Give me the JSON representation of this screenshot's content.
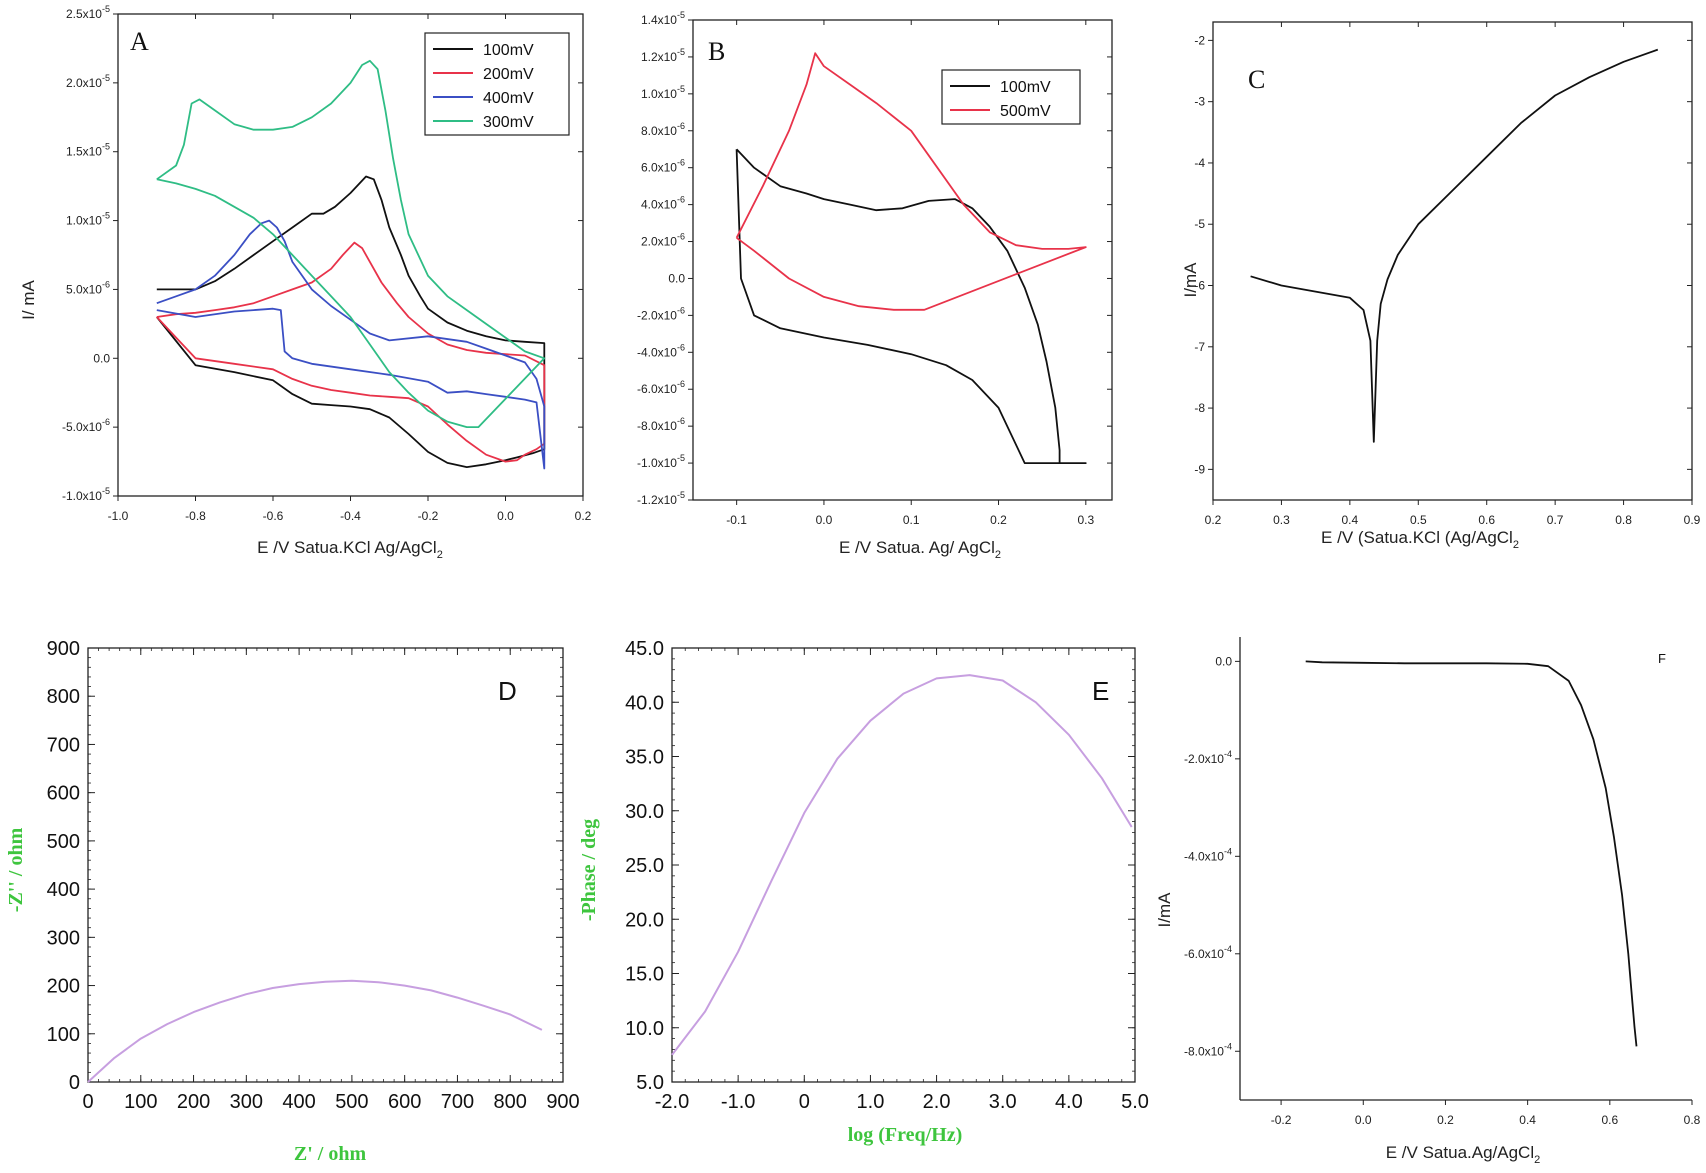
{
  "chart_data": [
    {
      "id": "A",
      "type": "line",
      "panel_label": "A",
      "xlabel": "E /V Satua.KCl Ag/AgCl",
      "xlabel_sub": "2",
      "ylabel": "I/ mA",
      "xlim": [
        -1.0,
        0.2
      ],
      "ylim": [
        -1e-05,
        2.5e-05
      ],
      "xticks": [
        "-1.0",
        "-0.8",
        "-0.6",
        "-0.4",
        "-0.2",
        "0.0",
        "0.2"
      ],
      "yticks": [
        "-1.0x10",
        "-5.0x10",
        "0.0",
        "5.0x10",
        "1.0x10",
        "1.5x10",
        "2.0x10",
        "2.5x10"
      ],
      "ytick_exps": [
        "-5",
        "-6",
        "",
        "-6",
        "-5",
        "-5",
        "-5",
        "-5"
      ],
      "legend_position": "top-right",
      "series": [
        {
          "name": "100mV",
          "color": "#111111",
          "x": [
            -0.9,
            -0.9,
            -0.85,
            -0.8,
            -0.75,
            -0.7,
            -0.65,
            -0.6,
            -0.55,
            -0.5,
            -0.47,
            -0.44,
            -0.4,
            -0.36,
            -0.34,
            -0.32,
            -0.3,
            -0.27,
            -0.25,
            -0.22,
            -0.2,
            -0.15,
            -0.1,
            -0.05,
            0.0,
            0.05,
            0.1,
            0.1,
            0.07,
            0.03,
            0.0,
            -0.05,
            -0.1,
            -0.15,
            -0.2,
            -0.25,
            -0.3,
            -0.35,
            -0.4,
            -0.45,
            -0.5,
            -0.55,
            -0.6,
            -0.7,
            -0.8,
            -0.9
          ],
          "y": [
            5e-06,
            5e-06,
            5e-06,
            5e-06,
            5.6e-06,
            6.5e-06,
            7.5e-06,
            8.5e-06,
            9.5e-06,
            1.05e-05,
            1.05e-05,
            1.1e-05,
            1.2e-05,
            1.32e-05,
            1.3e-05,
            1.15e-05,
            9.5e-06,
            7.5e-06,
            6e-06,
            4.5e-06,
            3.6e-06,
            2.6e-06,
            2e-06,
            1.6e-06,
            1.3e-06,
            1.2e-06,
            1.1e-06,
            -6.6e-06,
            -6.9e-06,
            -7.2e-06,
            -7.4e-06,
            -7.7e-06,
            -7.9e-06,
            -7.6e-06,
            -6.8e-06,
            -5.5e-06,
            -4.3e-06,
            -3.7e-06,
            -3.5e-06,
            -3.4e-06,
            -3.3e-06,
            -2.6e-06,
            -1.6e-06,
            -1e-06,
            -5e-07,
            3e-06
          ]
        },
        {
          "name": "200mV",
          "color": "#e8334a",
          "x": [
            -0.9,
            -0.85,
            -0.8,
            -0.75,
            -0.7,
            -0.65,
            -0.6,
            -0.55,
            -0.5,
            -0.45,
            -0.42,
            -0.39,
            -0.37,
            -0.35,
            -0.32,
            -0.28,
            -0.25,
            -0.2,
            -0.15,
            -0.1,
            -0.05,
            0.0,
            0.05,
            0.1,
            0.1,
            0.08,
            0.05,
            0.03,
            0.0,
            -0.05,
            -0.1,
            -0.15,
            -0.2,
            -0.25,
            -0.3,
            -0.35,
            -0.4,
            -0.45,
            -0.5,
            -0.55,
            -0.6,
            -0.7,
            -0.8,
            -0.85,
            -0.9
          ],
          "y": [
            3e-06,
            3.2e-06,
            3.3e-06,
            3.5e-06,
            3.7e-06,
            4e-06,
            4.5e-06,
            5e-06,
            5.5e-06,
            6.5e-06,
            7.5e-06,
            8.4e-06,
            8e-06,
            7e-06,
            5.5e-06,
            4e-06,
            3e-06,
            1.8e-06,
            1e-06,
            6e-07,
            4e-07,
            3e-07,
            2e-07,
            -5e-07,
            -6.2e-06,
            -6.6e-06,
            -7e-06,
            -7.4e-06,
            -7.5e-06,
            -7e-06,
            -6e-06,
            -4.8e-06,
            -3.5e-06,
            -2.9e-06,
            -2.8e-06,
            -2.7e-06,
            -2.5e-06,
            -2.3e-06,
            -2e-06,
            -1.5e-06,
            -8e-07,
            -4e-07,
            0.0,
            1.5e-06,
            3e-06
          ]
        },
        {
          "name": "400mV",
          "color": "#3b4fc4",
          "x": [
            -0.9,
            -0.85,
            -0.8,
            -0.75,
            -0.7,
            -0.66,
            -0.63,
            -0.61,
            -0.59,
            -0.57,
            -0.55,
            -0.5,
            -0.45,
            -0.4,
            -0.35,
            -0.3,
            -0.2,
            -0.1,
            -0.05,
            0.0,
            0.05,
            0.08,
            0.1,
            0.1,
            0.08,
            0.05,
            0.0,
            -0.05,
            -0.1,
            -0.15,
            -0.2,
            -0.3,
            -0.4,
            -0.5,
            -0.55,
            -0.57,
            -0.58,
            -0.6,
            -0.65,
            -0.7,
            -0.8,
            -0.9
          ],
          "y": [
            4e-06,
            4.5e-06,
            5e-06,
            6e-06,
            7.5e-06,
            9e-06,
            9.8e-06,
            1e-05,
            9.5e-06,
            8.5e-06,
            7e-06,
            5e-06,
            3.8e-06,
            2.8e-06,
            1.8e-06,
            1.3e-06,
            1.6e-06,
            1.2e-06,
            7e-07,
            2e-07,
            -3e-07,
            -1.5e-06,
            -3.5e-06,
            -8e-06,
            -3.2e-06,
            -3e-06,
            -2.8e-06,
            -2.6e-06,
            -2.4e-06,
            -2.5e-06,
            -1.7e-06,
            -1.2e-06,
            -8e-07,
            -4e-07,
            0.0,
            5e-07,
            3.5e-06,
            3.6e-06,
            3.5e-06,
            3.4e-06,
            3e-06,
            3.5e-06
          ]
        },
        {
          "name": "300mV",
          "color": "#2fbd85",
          "x": [
            -0.9,
            -0.85,
            -0.83,
            -0.81,
            -0.79,
            -0.75,
            -0.7,
            -0.65,
            -0.6,
            -0.55,
            -0.5,
            -0.45,
            -0.4,
            -0.37,
            -0.35,
            -0.33,
            -0.31,
            -0.29,
            -0.27,
            -0.25,
            -0.2,
            -0.15,
            -0.1,
            -0.05,
            0.0,
            0.05,
            0.1,
            -0.07,
            -0.1,
            -0.15,
            -0.2,
            -0.25,
            -0.3,
            -0.35,
            -0.4,
            -0.45,
            -0.5,
            -0.55,
            -0.6,
            -0.65,
            -0.7,
            -0.75,
            -0.8,
            -0.85,
            -0.9
          ],
          "y": [
            1.3e-05,
            1.4e-05,
            1.55e-05,
            1.85e-05,
            1.88e-05,
            1.8e-05,
            1.7e-05,
            1.66e-05,
            1.66e-05,
            1.68e-05,
            1.75e-05,
            1.85e-05,
            2e-05,
            2.13e-05,
            2.16e-05,
            2.1e-05,
            1.8e-05,
            1.45e-05,
            1.15e-05,
            9e-06,
            6e-06,
            4.5e-06,
            3.5e-06,
            2.5e-06,
            1.5e-06,
            5e-07,
            0.0,
            -5e-06,
            -5e-06,
            -4.6e-06,
            -3.8e-06,
            -2.5e-06,
            -1e-06,
            1e-06,
            3e-06,
            4.5e-06,
            6e-06,
            7.5e-06,
            9e-06,
            1.02e-05,
            1.1e-05,
            1.18e-05,
            1.23e-05,
            1.27e-05,
            1.3e-05
          ]
        }
      ]
    },
    {
      "id": "B",
      "type": "line",
      "panel_label": "B",
      "xlabel": "E /V Satua. Ag/ AgCl",
      "xlabel_sub": "2",
      "ylabel": "",
      "xlim": [
        -0.15,
        0.33
      ],
      "ylim": [
        -1.2e-05,
        1.4e-05
      ],
      "xticks": [
        "-0.1",
        "0.0",
        "0.1",
        "0.2",
        "0.3"
      ],
      "yticks": [
        "-1.2x10",
        "-1.0x10",
        "-8.0x10",
        "-6.0x10",
        "-4.0x10",
        "-2.0x10",
        "0.0",
        "2.0x10",
        "4.0x10",
        "6.0x10",
        "8.0x10",
        "1.0x10",
        "1.2x10",
        "1.4x10"
      ],
      "ytick_exps": [
        "-5",
        "-5",
        "-6",
        "-6",
        "-6",
        "-6",
        "",
        "-6",
        "-6",
        "-6",
        "-6",
        "-5",
        "-5",
        "-5"
      ],
      "legend_position": "top-right",
      "series": [
        {
          "name": "100mV",
          "color": "#111111",
          "x": [
            -0.1,
            -0.08,
            -0.05,
            -0.02,
            0.0,
            0.03,
            0.06,
            0.09,
            0.12,
            0.15,
            0.17,
            0.19,
            0.21,
            0.23,
            0.245,
            0.255,
            0.265,
            0.27,
            0.27,
            0.3,
            0.27,
            0.23,
            0.2,
            0.17,
            0.14,
            0.1,
            0.05,
            0.0,
            -0.05,
            -0.08,
            -0.095,
            -0.1
          ],
          "y": [
            7e-06,
            6e-06,
            5e-06,
            4.6e-06,
            4.3e-06,
            4e-06,
            3.7e-06,
            3.8e-06,
            4.2e-06,
            4.3e-06,
            3.8e-06,
            2.8e-06,
            1.5e-06,
            -5e-07,
            -2.5e-06,
            -4.5e-06,
            -7e-06,
            -9.3e-06,
            -1e-05,
            -1e-05,
            -1e-05,
            -1e-05,
            -7e-06,
            -5.5e-06,
            -4.7e-06,
            -4.1e-06,
            -3.6e-06,
            -3.2e-06,
            -2.7e-06,
            -2e-06,
            0.0,
            7e-06
          ]
        },
        {
          "name": "500mV",
          "color": "#e8334a",
          "x": [
            -0.1,
            -0.07,
            -0.04,
            -0.02,
            -0.01,
            0.0,
            0.03,
            0.06,
            0.1,
            0.13,
            0.16,
            0.19,
            0.22,
            0.25,
            0.28,
            0.3,
            0.115,
            0.08,
            0.04,
            0.0,
            -0.04,
            -0.08,
            -0.1
          ],
          "y": [
            2.2e-06,
            5e-06,
            8e-06,
            1.05e-05,
            1.22e-05,
            1.15e-05,
            1.05e-05,
            9.5e-06,
            8e-06,
            6e-06,
            4e-06,
            2.5e-06,
            1.8e-06,
            1.6e-06,
            1.6e-06,
            1.7e-06,
            -1.7e-06,
            -1.7e-06,
            -1.5e-06,
            -1e-06,
            0.0,
            1.5e-06,
            2.2e-06
          ]
        }
      ]
    },
    {
      "id": "C",
      "type": "line",
      "panel_label": "C",
      "xlabel": "E /V (Satua.KCl (Ag/AgCl",
      "xlabel_sub": "2",
      "ylabel": "I/mA",
      "xlim": [
        0.2,
        0.9
      ],
      "ylim": [
        -9.5,
        -1.7
      ],
      "xticks": [
        "0.2",
        "0.3",
        "0.4",
        "0.5",
        "0.6",
        "0.7",
        "0.8",
        "0.9"
      ],
      "yticks": [
        "-9",
        "-8",
        "-7",
        "-6",
        "-5",
        "-4",
        "-3",
        "-2"
      ],
      "series": [
        {
          "name": "",
          "color": "#111111",
          "x": [
            0.255,
            0.3,
            0.35,
            0.4,
            0.42,
            0.43,
            0.435,
            0.44,
            0.445,
            0.455,
            0.47,
            0.5,
            0.55,
            0.6,
            0.65,
            0.7,
            0.75,
            0.8,
            0.85
          ],
          "y": [
            -5.85,
            -6.0,
            -6.1,
            -6.2,
            -6.4,
            -6.9,
            -8.55,
            -6.9,
            -6.3,
            -5.9,
            -5.5,
            -5.0,
            -4.45,
            -3.9,
            -3.35,
            -2.9,
            -2.6,
            -2.35,
            -2.15
          ]
        }
      ]
    },
    {
      "id": "D",
      "type": "line",
      "panel_label": "D",
      "xlabel": "Z' / ohm",
      "ylabel": "-Z'' / ohm",
      "xlim": [
        0,
        900
      ],
      "ylim": [
        0,
        900
      ],
      "xticks": [
        "0",
        "100",
        "200",
        "300",
        "400",
        "500",
        "600",
        "700",
        "800",
        "900"
      ],
      "yticks": [
        "0",
        "100",
        "200",
        "300",
        "400",
        "500",
        "600",
        "700",
        "800",
        "900"
      ],
      "series": [
        {
          "name": "",
          "color": "#c79fe0",
          "x": [
            0,
            50,
            100,
            150,
            200,
            250,
            300,
            350,
            400,
            450,
            500,
            550,
            600,
            650,
            700,
            750,
            800,
            860
          ],
          "y": [
            0,
            50,
            90,
            120,
            145,
            165,
            182,
            195,
            203,
            208,
            210,
            207,
            200,
            190,
            175,
            158,
            140,
            108
          ]
        }
      ]
    },
    {
      "id": "E",
      "type": "line",
      "panel_label": "E",
      "xlabel": "log (Freq/Hz)",
      "ylabel": "-Phase / deg",
      "xlim": [
        -2.0,
        5.0
      ],
      "ylim": [
        5.0,
        45.0
      ],
      "xticks": [
        "-2.0",
        "-1.0",
        "0",
        "1.0",
        "2.0",
        "3.0",
        "4.0",
        "5.0"
      ],
      "yticks": [
        "5.0",
        "10.0",
        "15.0",
        "20.0",
        "25.0",
        "30.0",
        "35.0",
        "40.0",
        "45.0"
      ],
      "series": [
        {
          "name": "",
          "color": "#c79fe0",
          "x": [
            -2.0,
            -1.5,
            -1.0,
            -0.5,
            0.0,
            0.5,
            1.0,
            1.5,
            2.0,
            2.5,
            3.0,
            3.5,
            4.0,
            4.5,
            4.95
          ],
          "y": [
            7.5,
            11.5,
            17.0,
            23.5,
            29.8,
            34.8,
            38.3,
            40.8,
            42.2,
            42.5,
            42.0,
            40.0,
            37.0,
            33.0,
            28.5
          ]
        }
      ]
    },
    {
      "id": "F",
      "type": "line",
      "panel_label": "F",
      "xlabel": "E /V Satua.Ag/AgCl",
      "xlabel_sub": "2",
      "ylabel": "I/mA",
      "xlim": [
        -0.3,
        0.8
      ],
      "ylim": [
        -0.0009,
        5e-05
      ],
      "xticks": [
        "-0.2",
        "0.0",
        "0.2",
        "0.4",
        "0.6",
        "0.8"
      ],
      "yticks": [
        "0.0",
        "-2.0x10",
        "-4.0x10",
        "-6.0x10",
        "-8.0x10"
      ],
      "ytick_exps": [
        "",
        "-4",
        "-4",
        "-4",
        "-4"
      ],
      "series": [
        {
          "name": "",
          "color": "#111111",
          "x": [
            -0.14,
            -0.1,
            0.0,
            0.1,
            0.2,
            0.3,
            0.4,
            0.45,
            0.5,
            0.53,
            0.56,
            0.59,
            0.61,
            0.63,
            0.645,
            0.655,
            0.66,
            0.665
          ],
          "y": [
            0.0,
            -2e-06,
            -3e-06,
            -4e-06,
            -4e-06,
            -4e-06,
            -5e-06,
            -1e-05,
            -4e-05,
            -9e-05,
            -0.00016,
            -0.00026,
            -0.00036,
            -0.00048,
            -0.0006,
            -0.0007,
            -0.00075,
            -0.00079
          ]
        }
      ]
    }
  ]
}
